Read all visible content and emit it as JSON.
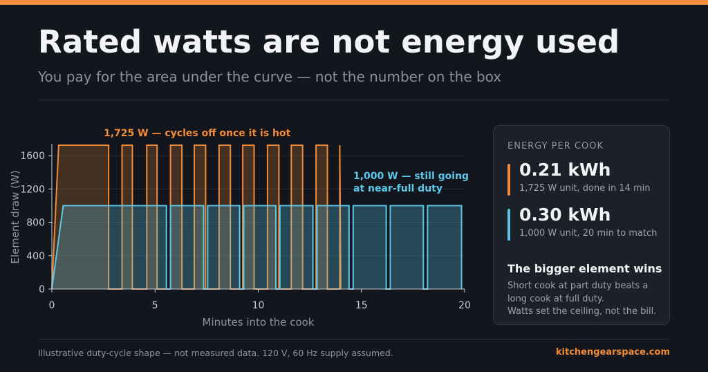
{
  "title": "Rated watts are not energy used",
  "subtitle": "You pay for the area under the curve — not the number on the box",
  "colors": {
    "accent_orange": "#f28c38",
    "accent_blue": "#5bc8ea",
    "background": "#13161c",
    "grid": "#262c36"
  },
  "chart_data": {
    "type": "area",
    "xlabel": "Minutes into the cook",
    "ylabel": "Element draw (W)",
    "xlim": [
      0,
      20
    ],
    "ylim": [
      0,
      1725
    ],
    "xticks": [
      "0",
      "5",
      "10",
      "15",
      "20"
    ],
    "yticks": [
      "0",
      "400",
      "800",
      "1200",
      "1600"
    ],
    "grid": "horizontal",
    "series": [
      {
        "name": "1,725 W — cycles off once it is hot",
        "color": "#f28c38",
        "x": [
          0,
          0.33,
          2.75,
          2.75,
          3.4,
          3.4,
          3.9,
          3.9,
          4.6,
          4.6,
          5.1,
          5.1,
          5.75,
          5.75,
          6.3,
          6.3,
          6.9,
          6.9,
          7.45,
          7.45,
          8.1,
          8.1,
          8.65,
          8.65,
          9.25,
          9.25,
          9.8,
          9.8,
          10.45,
          10.45,
          11.0,
          11.0,
          11.6,
          11.6,
          12.15,
          12.15,
          12.8,
          12.8,
          13.35,
          13.35,
          13.95,
          13.95,
          14.0
        ],
        "y": [
          0,
          1725,
          1725,
          0,
          0,
          1725,
          1725,
          0,
          0,
          1725,
          1725,
          0,
          0,
          1725,
          1725,
          0,
          0,
          1725,
          1725,
          0,
          0,
          1725,
          1725,
          0,
          0,
          1725,
          1725,
          0,
          0,
          1725,
          1725,
          0,
          0,
          1725,
          1725,
          0,
          0,
          1725,
          1725,
          0,
          0,
          1725,
          0
        ]
      },
      {
        "name": "1,000 W — still going at near-full duty",
        "color": "#5bc8ea",
        "x": [
          0,
          0.55,
          5.55,
          5.55,
          5.75,
          5.75,
          7.35,
          7.35,
          7.55,
          7.55,
          9.1,
          9.1,
          9.3,
          9.3,
          10.85,
          10.85,
          11.05,
          11.05,
          12.65,
          12.65,
          12.85,
          12.85,
          14.4,
          14.4,
          14.6,
          14.6,
          16.2,
          16.2,
          16.4,
          16.4,
          18.0,
          18.0,
          18.2,
          18.2,
          19.85,
          19.85
        ],
        "y": [
          0,
          1000,
          1000,
          0,
          0,
          1000,
          1000,
          0,
          0,
          1000,
          1000,
          0,
          0,
          1000,
          1000,
          0,
          0,
          1000,
          1000,
          0,
          0,
          1000,
          1000,
          0,
          0,
          1000,
          1000,
          0,
          0,
          1000,
          1000,
          0,
          0,
          1000,
          1000,
          0
        ]
      }
    ],
    "annotations": {
      "orange": "1,725 W — cycles off once it is hot",
      "blue_line1": "1,000 W — still going",
      "blue_line2": "at near-full duty"
    }
  },
  "panel": {
    "title": "ENERGY PER COOK",
    "stats": [
      {
        "value": "0.21 kWh",
        "note": "1,725 W unit, done in 14 min",
        "color": "#f28c38"
      },
      {
        "value": "0.30 kWh",
        "note": "1,000 W unit, 20 min to match",
        "color": "#5bc8ea"
      }
    ],
    "heading": "The bigger element wins",
    "body": [
      "Short cook at part duty beats a",
      "long cook at full duty.",
      "Watts set the ceiling, not the bill."
    ]
  },
  "footnote": "Illustrative duty-cycle shape — not measured data. 120 V, 60 Hz supply assumed.",
  "brand": "kitchengearspace.com"
}
